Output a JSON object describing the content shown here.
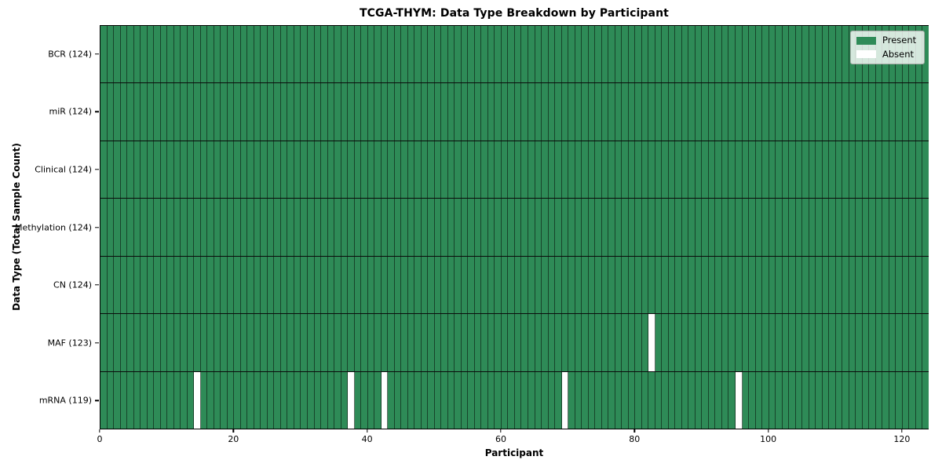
{
  "title": "TCGA-THYM: Data Type Breakdown by Participant",
  "chart_data": {
    "type": "heatmap",
    "title": "TCGA-THYM: Data Type Breakdown by Participant",
    "xlabel": "Participant",
    "ylabel": "Data Type (Total Sample Count)",
    "n_participants": 124,
    "xlim": [
      0,
      124
    ],
    "x_ticks": [
      0,
      20,
      40,
      60,
      80,
      100,
      120
    ],
    "grid": true,
    "legend_position": "upper right",
    "rows": [
      {
        "name": "BCR",
        "label": "BCR (124)",
        "present_count": 124,
        "absent_participants": []
      },
      {
        "name": "miR",
        "label": "miR (124)",
        "present_count": 124,
        "absent_participants": []
      },
      {
        "name": "Clinical",
        "label": "Clinical (124)",
        "present_count": 124,
        "absent_participants": []
      },
      {
        "name": "Methylation",
        "label": "Methylation (124)",
        "present_count": 124,
        "absent_participants": []
      },
      {
        "name": "CN",
        "label": "CN (124)",
        "present_count": 124,
        "absent_participants": []
      },
      {
        "name": "MAF",
        "label": "MAF (123)",
        "present_count": 123,
        "absent_participants": [
          82
        ]
      },
      {
        "name": "mRNA",
        "label": "mRNA (119)",
        "present_count": 119,
        "absent_participants": [
          14,
          37,
          42,
          69,
          95
        ]
      }
    ],
    "legend": {
      "items": [
        {
          "label": "Present",
          "color": "#2e8b57"
        },
        {
          "label": "Absent",
          "color": "#ffffff"
        }
      ]
    },
    "colors": {
      "present": "#2e8b57",
      "absent": "#ffffff",
      "cell_edge": "rgba(10,30,18,0.65)",
      "row_divider": "#0b0b0b"
    }
  }
}
